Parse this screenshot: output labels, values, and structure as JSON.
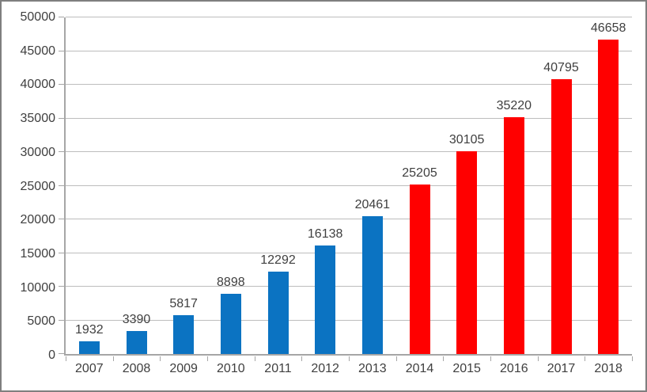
{
  "chart_data": {
    "type": "bar",
    "title": "",
    "xlabel": "",
    "ylabel": "",
    "categories": [
      "2007",
      "2008",
      "2009",
      "2010",
      "2011",
      "2012",
      "2013",
      "2014",
      "2015",
      "2016",
      "2017",
      "2018"
    ],
    "values": [
      1932,
      3390,
      5817,
      8898,
      12292,
      16138,
      20461,
      25205,
      30105,
      35220,
      40795,
      46658
    ],
    "bar_colors": [
      "#0b73c2",
      "#0b73c2",
      "#0b73c2",
      "#0b73c2",
      "#0b73c2",
      "#0b73c2",
      "#0b73c2",
      "#ff0000",
      "#ff0000",
      "#ff0000",
      "#ff0000",
      "#ff0000"
    ],
    "y_tick_labels": [
      "0",
      "5000",
      "10000",
      "15000",
      "20000",
      "25000",
      "30000",
      "35000",
      "40000",
      "45000",
      "50000"
    ],
    "ylim": [
      0,
      50000
    ],
    "ytick_step": 5000,
    "grid": true,
    "legend": false,
    "data_labels_shown": true
  },
  "style": {
    "bar_blue": "#0b73c2",
    "bar_red": "#ff0000",
    "gridline_color": "#bdbdbd",
    "axis_color": "#a6a6a6",
    "text_color": "#3f3f3f",
    "frame_border_color": "#7f7f7f",
    "background": "#ffffff"
  }
}
